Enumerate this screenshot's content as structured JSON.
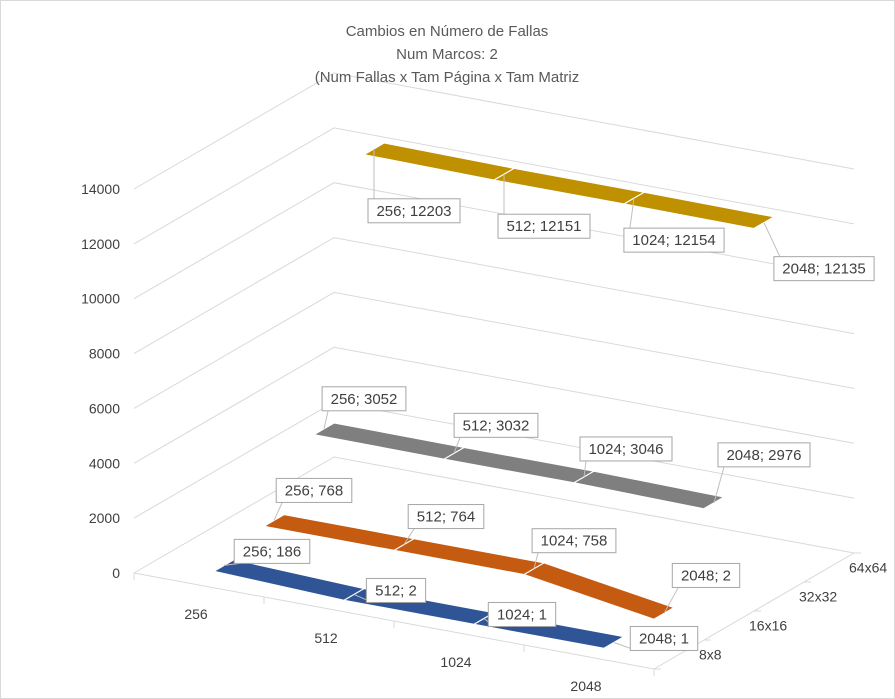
{
  "chart_data": {
    "type": "area",
    "title": "Cambios en Número de Fallas",
    "subtitle_lines": [
      "Num Marcos: 2",
      "(Num Fallas x Tam Página x Tam Matriz"
    ],
    "categories": [
      "256",
      "512",
      "1024",
      "2048"
    ],
    "depth_categories": [
      "8x8",
      "16x16",
      "32x32",
      "64x64"
    ],
    "y_ticks": [
      "0",
      "2000",
      "4000",
      "6000",
      "8000",
      "10000",
      "12000",
      "14000"
    ],
    "ylim": [
      0,
      14000
    ],
    "grid": true,
    "series": [
      {
        "depth": "8x8",
        "color": "#2f5597",
        "values": [
          186,
          2,
          1,
          1
        ],
        "labels": [
          "256; 186",
          "512; 2",
          "1024; 1",
          "2048; 1"
        ]
      },
      {
        "depth": "16x16",
        "color": "#c55a11",
        "values": [
          768,
          764,
          758,
          2
        ],
        "labels": [
          "256; 768",
          "512; 764",
          "1024; 758",
          "2048; 2"
        ]
      },
      {
        "depth": "32x32",
        "color": "#7f7f7f",
        "values": [
          3052,
          3032,
          3046,
          2976
        ],
        "labels": [
          "256; 3052",
          "512; 3032",
          "1024; 3046",
          "2048; 2976"
        ]
      },
      {
        "depth": "64x64",
        "color": "#bf9000",
        "values": [
          12203,
          12151,
          12154,
          12135
        ],
        "labels": [
          "256; 12203",
          "512; 12151",
          "1024; 12154",
          "2048; 12135"
        ]
      }
    ]
  }
}
